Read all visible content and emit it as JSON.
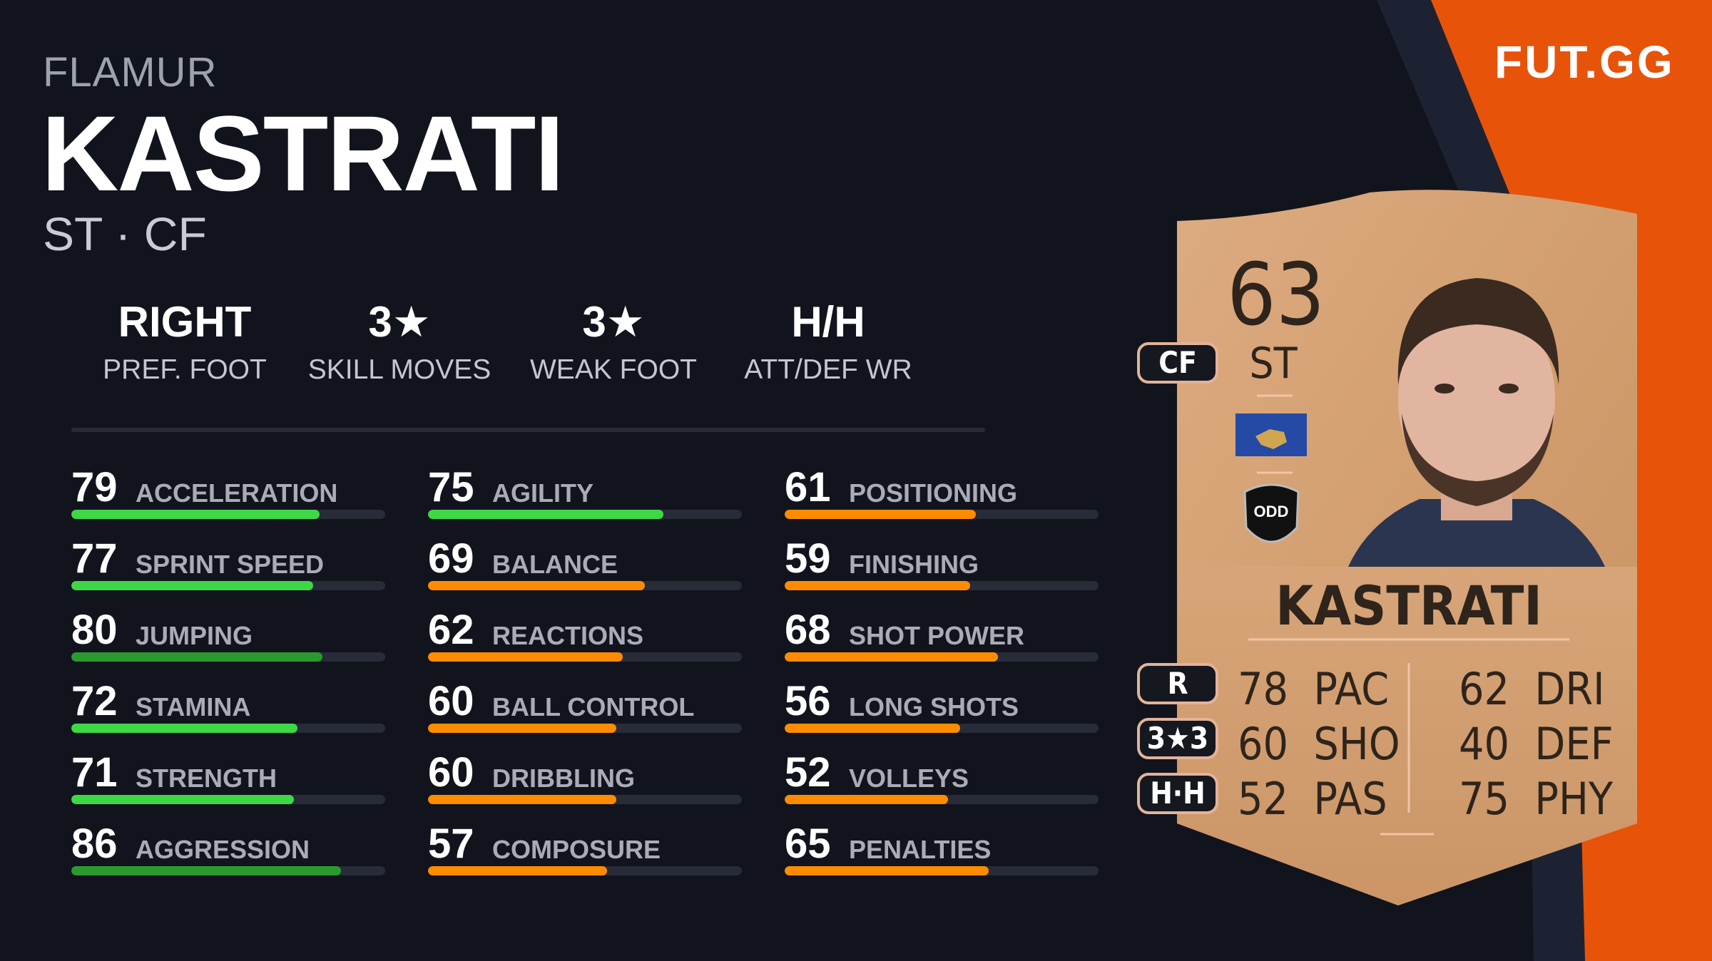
{
  "player": {
    "first_name": "FLAMUR",
    "last_name": "KASTRATI",
    "positions": "ST · CF"
  },
  "info": [
    {
      "value": "RIGHT",
      "label": "PREF. FOOT"
    },
    {
      "value": "3★",
      "label": "SKILL MOVES"
    },
    {
      "value": "3★",
      "label": "WEAK FOOT"
    },
    {
      "value": "H/H",
      "label": "ATT/DEF WR"
    }
  ],
  "colors": {
    "background": "#12141d",
    "accent": "#e8530a",
    "green": "#3ed846",
    "dark_green": "#2a9a2e",
    "orange": "#ff8c00",
    "track": "#282b38",
    "card": "#d3a076"
  },
  "stat_columns": [
    [
      {
        "value": 79,
        "label": "ACCELERATION"
      },
      {
        "value": 77,
        "label": "SPRINT SPEED"
      },
      {
        "value": 80,
        "label": "JUMPING"
      },
      {
        "value": 72,
        "label": "STAMINA"
      },
      {
        "value": 71,
        "label": "STRENGTH"
      },
      {
        "value": 86,
        "label": "AGGRESSION"
      }
    ],
    [
      {
        "value": 75,
        "label": "AGILITY"
      },
      {
        "value": 69,
        "label": "BALANCE"
      },
      {
        "value": 62,
        "label": "REACTIONS"
      },
      {
        "value": 60,
        "label": "BALL CONTROL"
      },
      {
        "value": 60,
        "label": "DRIBBLING"
      },
      {
        "value": 57,
        "label": "COMPOSURE"
      }
    ],
    [
      {
        "value": 61,
        "label": "POSITIONING"
      },
      {
        "value": 59,
        "label": "FINISHING"
      },
      {
        "value": 68,
        "label": "SHOT POWER"
      },
      {
        "value": 56,
        "label": "LONG SHOTS"
      },
      {
        "value": 52,
        "label": "VOLLEYS"
      },
      {
        "value": 65,
        "label": "PENALTIES"
      }
    ]
  ],
  "logo": "FUT.GG",
  "card": {
    "rating": "63",
    "position": "ST",
    "alt_position": "CF",
    "name": "KASTRATI",
    "nation_flag": "kosovo-flag",
    "club_badge": "odd-badge",
    "club_badge_text": "ODD",
    "pills": [
      "R",
      "3★3",
      "H·H"
    ],
    "left_stats": [
      {
        "v": "78",
        "l": "PAC"
      },
      {
        "v": "60",
        "l": "SHO"
      },
      {
        "v": "52",
        "l": "PAS"
      }
    ],
    "right_stats": [
      {
        "v": "62",
        "l": "DRI"
      },
      {
        "v": "40",
        "l": "DEF"
      },
      {
        "v": "75",
        "l": "PHY"
      }
    ]
  }
}
